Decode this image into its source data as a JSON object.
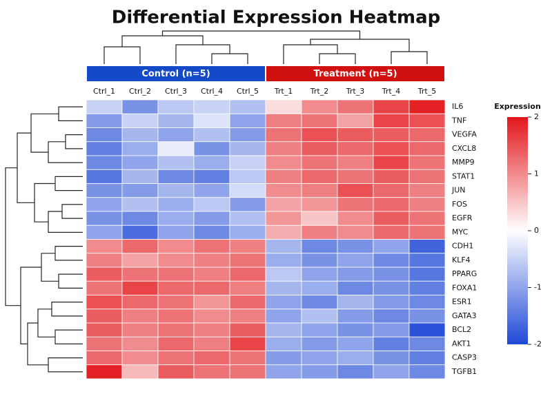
{
  "chart_data": {
    "type": "heatmap",
    "title": "Differential Expression Heatmap",
    "groups": [
      {
        "name": "Control (n=5)",
        "color": "#1449c8"
      },
      {
        "name": "Treatment (n=5)",
        "color": "#d0110f"
      }
    ],
    "columns": [
      "Ctrl_1",
      "Ctrl_2",
      "Ctrl_3",
      "Ctrl_4",
      "Ctrl_5",
      "Trt_1",
      "Trt_2",
      "Trt_3",
      "Trt_4",
      "Trt_5"
    ],
    "rows": [
      "IL6",
      "TNF",
      "VEGFA",
      "CXCL8",
      "MMP9",
      "STAT1",
      "JUN",
      "FOS",
      "EGFR",
      "MYC",
      "CDH1",
      "KLF4",
      "PPARG",
      "FOXA1",
      "ESR1",
      "GATA3",
      "BCL2",
      "AKT1",
      "CASP3",
      "TGFB1"
    ],
    "values": [
      [
        -0.5,
        -1.2,
        -0.6,
        -0.5,
        -0.7,
        0.3,
        1.0,
        1.2,
        1.6,
        1.9
      ],
      [
        -1.1,
        -0.5,
        -0.8,
        -0.3,
        -1.0,
        1.1,
        1.2,
        0.8,
        1.6,
        1.5
      ],
      [
        -1.3,
        -0.8,
        -1.0,
        -0.7,
        -1.1,
        1.2,
        1.5,
        1.4,
        1.4,
        1.3
      ],
      [
        -1.4,
        -0.9,
        -0.2,
        -1.2,
        -0.8,
        1.1,
        1.4,
        1.3,
        1.5,
        1.3
      ],
      [
        -1.3,
        -1.0,
        -0.7,
        -0.9,
        -0.5,
        1.0,
        1.2,
        1.1,
        1.6,
        1.2
      ],
      [
        -1.5,
        -0.8,
        -1.3,
        -1.4,
        -0.6,
        1.1,
        1.3,
        1.2,
        1.4,
        1.2
      ],
      [
        -1.2,
        -1.1,
        -0.8,
        -1.0,
        -0.4,
        1.0,
        1.1,
        1.5,
        1.3,
        1.1
      ],
      [
        -1.0,
        -0.7,
        -0.9,
        -0.6,
        -1.1,
        0.8,
        0.9,
        1.2,
        1.3,
        1.1
      ],
      [
        -1.2,
        -1.3,
        -0.9,
        -1.1,
        -0.7,
        0.9,
        0.5,
        1.0,
        1.4,
        1.2
      ],
      [
        -1.0,
        -1.6,
        -1.0,
        -1.3,
        -0.9,
        0.7,
        1.1,
        1.0,
        1.3,
        1.2
      ],
      [
        1.0,
        1.3,
        1.0,
        1.2,
        1.1,
        -0.8,
        -1.3,
        -1.2,
        -1.0,
        -1.7
      ],
      [
        1.1,
        0.8,
        1.0,
        1.1,
        1.2,
        -0.9,
        -1.2,
        -1.0,
        -1.3,
        -1.5
      ],
      [
        1.4,
        1.2,
        1.2,
        1.1,
        1.3,
        -0.6,
        -1.0,
        -1.1,
        -1.2,
        -1.5
      ],
      [
        1.2,
        1.6,
        1.3,
        1.3,
        1.1,
        -0.8,
        -0.9,
        -1.3,
        -1.2,
        -1.4
      ],
      [
        1.5,
        1.3,
        1.2,
        0.9,
        1.3,
        -1.0,
        -1.3,
        -0.8,
        -1.1,
        -1.3
      ],
      [
        1.4,
        1.1,
        1.2,
        1.0,
        1.1,
        -1.0,
        -0.7,
        -1.1,
        -1.3,
        -1.2
      ],
      [
        1.4,
        1.1,
        1.2,
        1.1,
        1.4,
        -0.8,
        -1.0,
        -1.2,
        -1.1,
        -1.9
      ],
      [
        1.2,
        1.0,
        1.3,
        1.1,
        1.6,
        -0.9,
        -1.1,
        -1.0,
        -1.4,
        -1.3
      ],
      [
        1.3,
        1.0,
        1.2,
        1.3,
        1.2,
        -1.1,
        -1.0,
        -0.9,
        -1.2,
        -1.4
      ],
      [
        1.9,
        0.6,
        1.4,
        1.2,
        1.2,
        -1.0,
        -1.1,
        -1.3,
        -1.0,
        -1.3
      ]
    ],
    "colorbar_label": "Expression",
    "colorscale": [
      "#1f49d6",
      "#ffffff",
      "#e3161b"
    ],
    "clim": [
      -2,
      2
    ],
    "cticks": [
      -2,
      -1,
      0,
      1,
      2
    ]
  }
}
